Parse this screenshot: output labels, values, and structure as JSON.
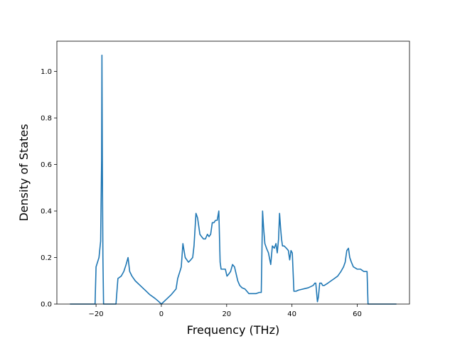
{
  "chart_data": {
    "type": "line",
    "title": "",
    "xlabel": "Frequency (THz)",
    "ylabel": "Density of States",
    "xlim": [
      -32,
      76
    ],
    "ylim": [
      0,
      1.13
    ],
    "xticks": [
      -20,
      0,
      20,
      40,
      60
    ],
    "yticks": [
      0.0,
      0.2,
      0.4,
      0.6,
      0.8,
      1.0
    ],
    "xtick_labels": [
      "−20",
      "0",
      "20",
      "40",
      "60"
    ],
    "ytick_labels": [
      "0.0",
      "0.2",
      "0.4",
      "0.6",
      "0.8",
      "1.0"
    ],
    "grid": false,
    "line_color": "#1f77b4",
    "series": [
      {
        "x": [
          -28,
          -20.3,
          -20,
          -19.1,
          -18.6,
          -18.3,
          -18.2,
          -18.05,
          -17.9,
          -17.7,
          -17.2,
          -16.9,
          -13.9,
          -13.3,
          -12.3,
          -11.5,
          -10.8,
          -10.2,
          -9.7,
          -9.0,
          -8.0,
          -6.5,
          -5.0,
          -3.5,
          -2.0,
          -0.9,
          0,
          1.5,
          3.0,
          4.5,
          5.0,
          5.9,
          6.1,
          6.6,
          7.3,
          8.3,
          9.0,
          9.6,
          10.0,
          10.6,
          11.1,
          11.8,
          12.3,
          12.9,
          13.5,
          14.1,
          14.6,
          15.1,
          15.6,
          16.1,
          16.6,
          17.1,
          17.6,
          18.0,
          18.3,
          18.7,
          19.1,
          19.6,
          20.1,
          20.7,
          21.2,
          21.8,
          22.4,
          22.9,
          23.4,
          24.0,
          24.7,
          25.6,
          26.8,
          27.2,
          28.0,
          29.0,
          30.0,
          30.6,
          31.0,
          31.3,
          31.7,
          32.2,
          32.8,
          33.5,
          34.0,
          34.6,
          35.1,
          35.5,
          35.9,
          36.2,
          36.5,
          36.8,
          37.1,
          37.6,
          38.3,
          38.9,
          39.3,
          39.7,
          40.1,
          40.6,
          41.2,
          42.0,
          45.0,
          46.5,
          47.0,
          47.3,
          47.8,
          48.1,
          48.5,
          49.0,
          49.4,
          49.9,
          51.0,
          52.0,
          53.0,
          54.0,
          55.0,
          55.8,
          56.3,
          56.8,
          57.3,
          57.7,
          58.2,
          58.8,
          60.0,
          61.0,
          62.0,
          63.0,
          63.3,
          63.8,
          64.5,
          66.0,
          72.0
        ],
        "y": [
          0,
          0,
          0.16,
          0.2,
          0.27,
          0.62,
          1.07,
          0.55,
          0.2,
          0.0,
          0,
          0,
          0,
          0.11,
          0.12,
          0.14,
          0.17,
          0.2,
          0.14,
          0.12,
          0.1,
          0.08,
          0.06,
          0.04,
          0.025,
          0.012,
          0,
          0.02,
          0.04,
          0.065,
          0.11,
          0.15,
          0.16,
          0.26,
          0.2,
          0.18,
          0.19,
          0.2,
          0.25,
          0.39,
          0.37,
          0.3,
          0.29,
          0.28,
          0.28,
          0.3,
          0.29,
          0.3,
          0.35,
          0.35,
          0.36,
          0.36,
          0.4,
          0.18,
          0.15,
          0.15,
          0.15,
          0.15,
          0.12,
          0.13,
          0.14,
          0.17,
          0.16,
          0.13,
          0.1,
          0.08,
          0.07,
          0.065,
          0.045,
          0.045,
          0.045,
          0.045,
          0.05,
          0.05,
          0.4,
          0.33,
          0.26,
          0.24,
          0.22,
          0.17,
          0.25,
          0.24,
          0.26,
          0.22,
          0.28,
          0.39,
          0.33,
          0.28,
          0.25,
          0.25,
          0.24,
          0.23,
          0.19,
          0.23,
          0.22,
          0.055,
          0.055,
          0.06,
          0.07,
          0.08,
          0.09,
          0.09,
          0.01,
          0.03,
          0.09,
          0.09,
          0.08,
          0.08,
          0.09,
          0.1,
          0.11,
          0.12,
          0.14,
          0.16,
          0.18,
          0.23,
          0.24,
          0.2,
          0.18,
          0.16,
          0.15,
          0.15,
          0.14,
          0.14,
          0.0,
          0,
          0,
          0,
          0
        ]
      }
    ]
  }
}
